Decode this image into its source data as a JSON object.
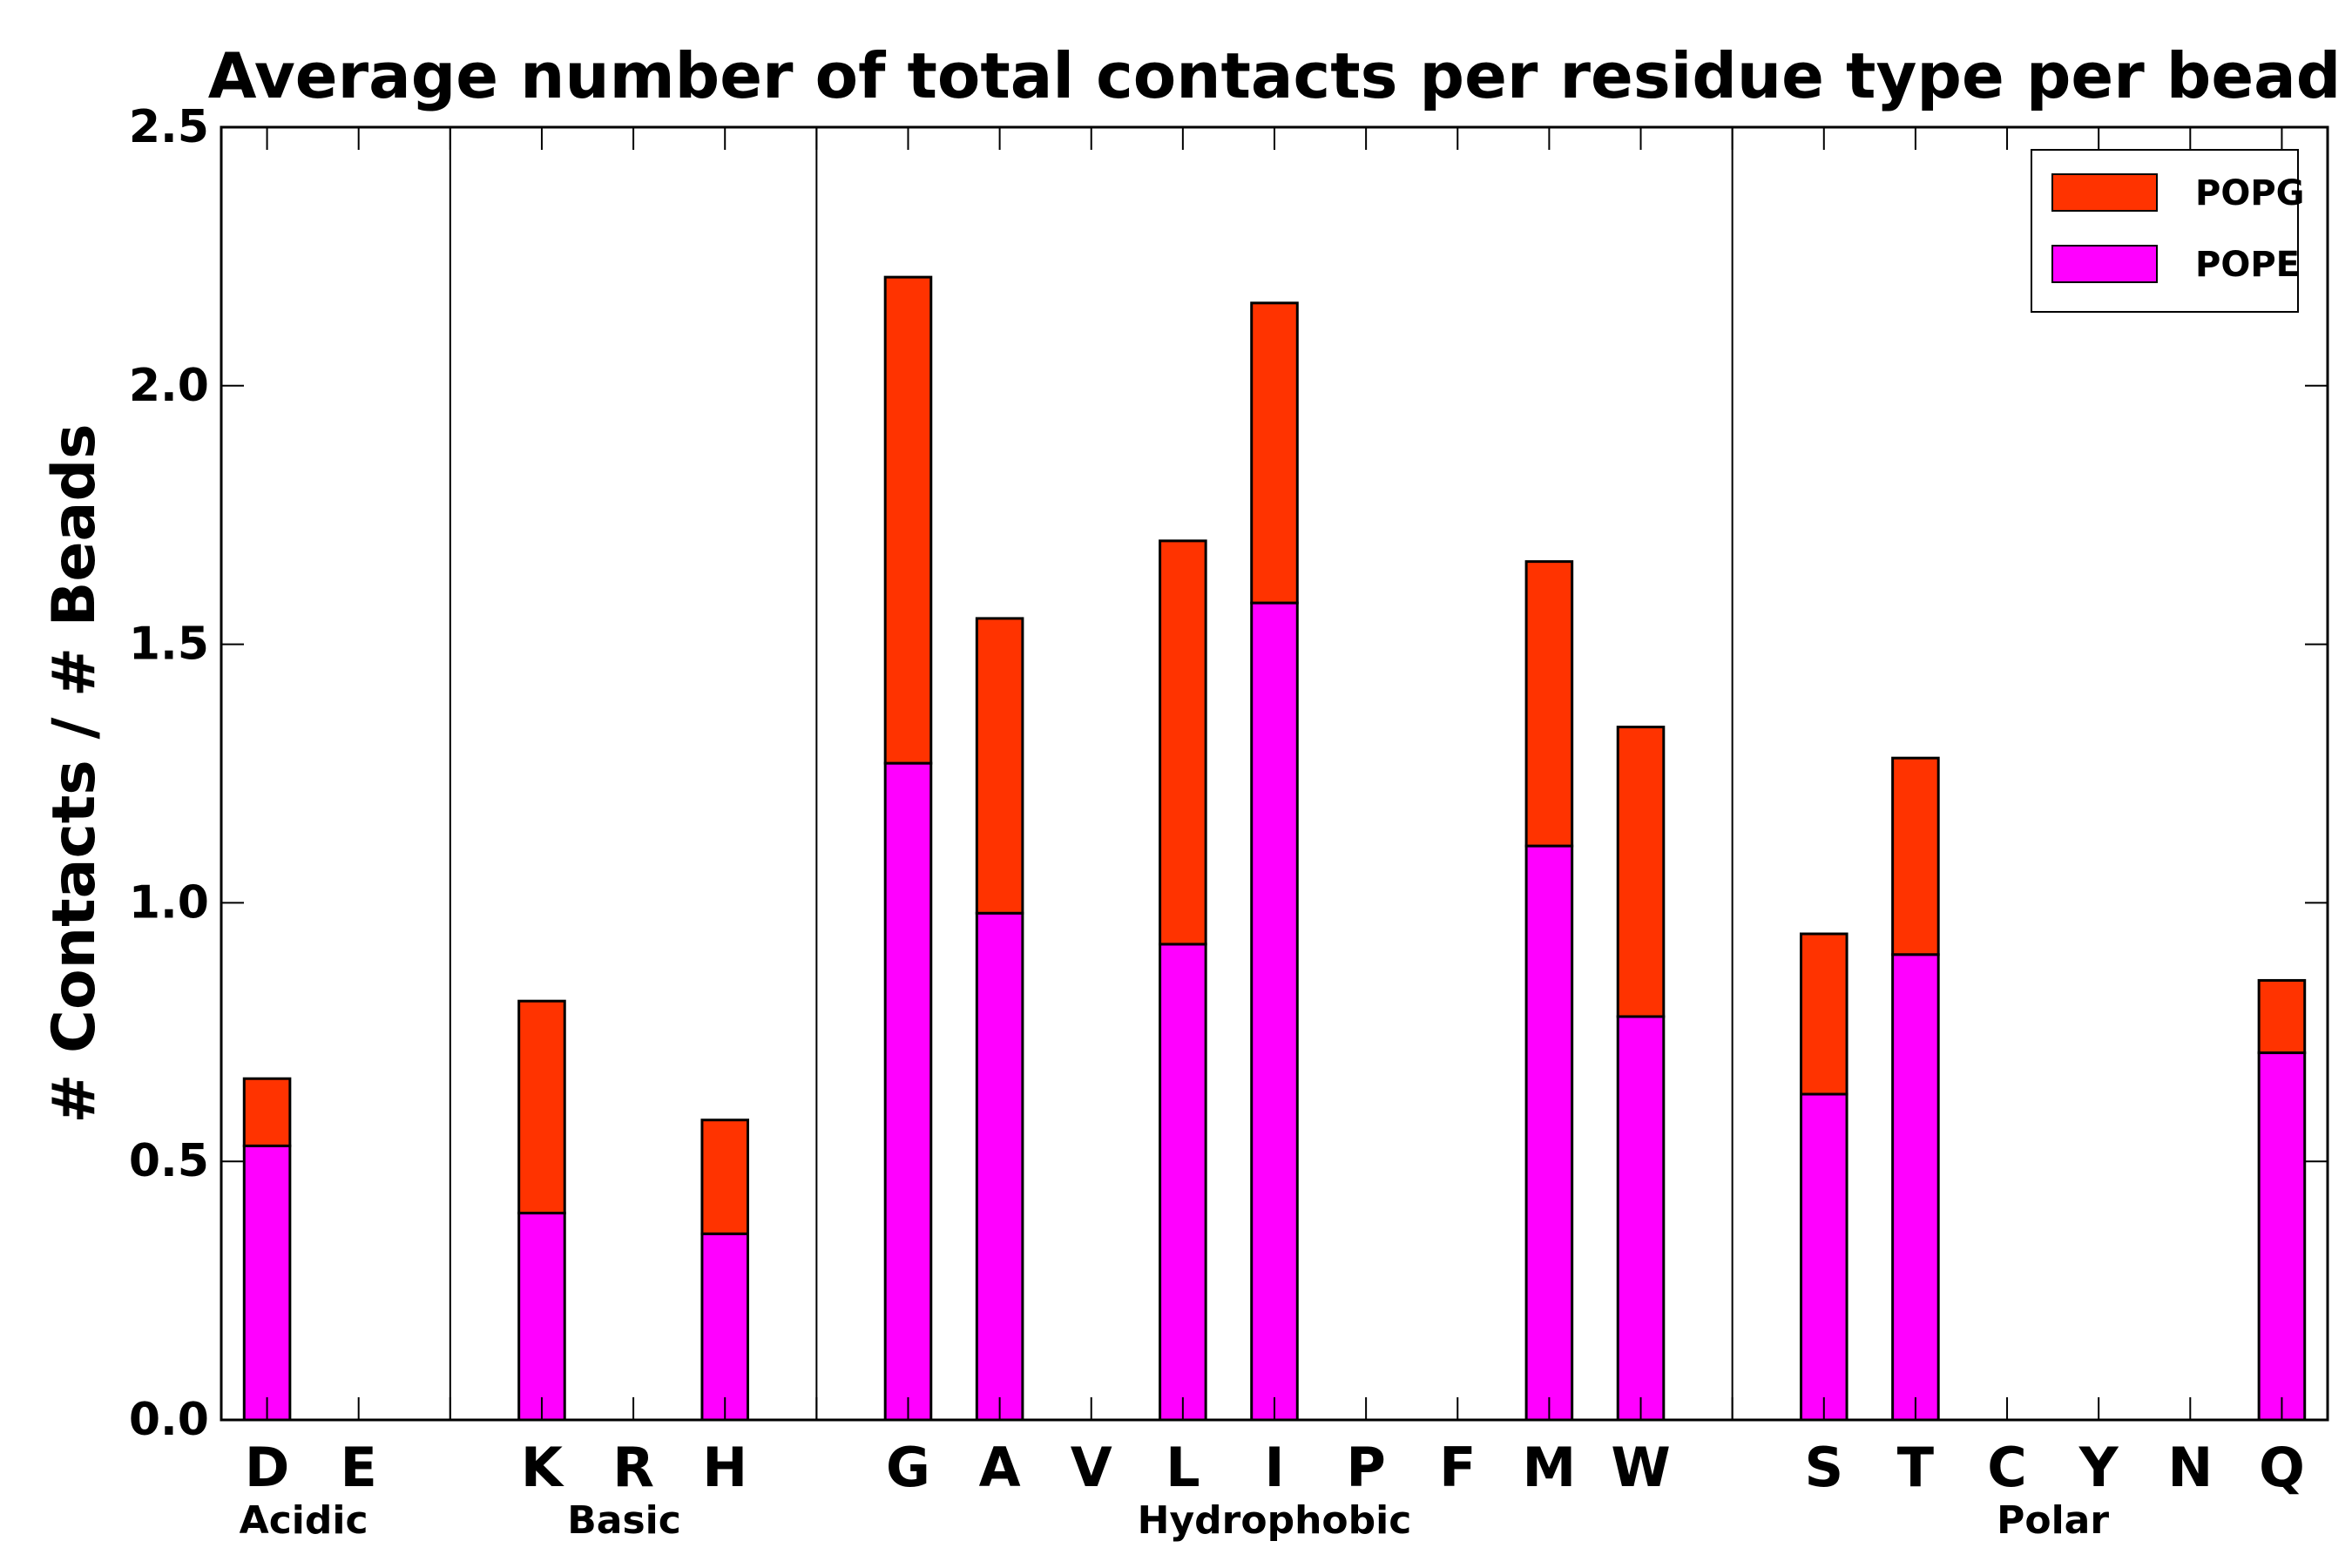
{
  "chart_data": {
    "type": "bar",
    "stacked": true,
    "title": "Average number of total contacts per residue type per bead",
    "xlabel": "",
    "ylabel": "# Contacts / # Beads",
    "ylim": [
      0,
      2.5
    ],
    "yticks": [
      "0.0",
      "0.5",
      "1.0",
      "1.5",
      "2.0",
      "2.5"
    ],
    "grid": false,
    "legend_position": "top-right",
    "categories": [
      "D",
      "E",
      "",
      "K",
      "R",
      "H",
      "",
      "G",
      "A",
      "V",
      "L",
      "I",
      "P",
      "F",
      "M",
      "W",
      "",
      "S",
      "T",
      "C",
      "Y",
      "N",
      "Q"
    ],
    "series": [
      {
        "name": "POPE",
        "color": "#FF00FF",
        "values": [
          0.53,
          0,
          0,
          0.4,
          0,
          0.36,
          0,
          1.27,
          0.98,
          0,
          0.92,
          1.58,
          0,
          0,
          1.11,
          0.78,
          0,
          0.63,
          0.9,
          0,
          0,
          0,
          0.71
        ]
      },
      {
        "name": "POPG",
        "color": "#FF3300",
        "values": [
          0.13,
          0,
          0,
          0.41,
          0,
          0.22,
          0,
          0.94,
          0.57,
          0,
          0.78,
          0.58,
          0,
          0,
          0.55,
          0.56,
          0,
          0.31,
          0.38,
          0,
          0,
          0,
          0.14
        ]
      }
    ],
    "legend_order": [
      "POPG",
      "POPE"
    ],
    "groups": [
      {
        "label": "Acidic",
        "start": 0,
        "end": 1,
        "label_at": 0.4
      },
      {
        "label": "Basic",
        "start": 3,
        "end": 5,
        "label_at": 3.9
      },
      {
        "label": "Hydrophobic",
        "start": 7,
        "end": 15,
        "label_at": 11.0
      },
      {
        "label": "Polar",
        "start": 17,
        "end": 22,
        "label_at": 19.5
      }
    ],
    "separators_after": [
      2,
      6,
      16
    ]
  }
}
